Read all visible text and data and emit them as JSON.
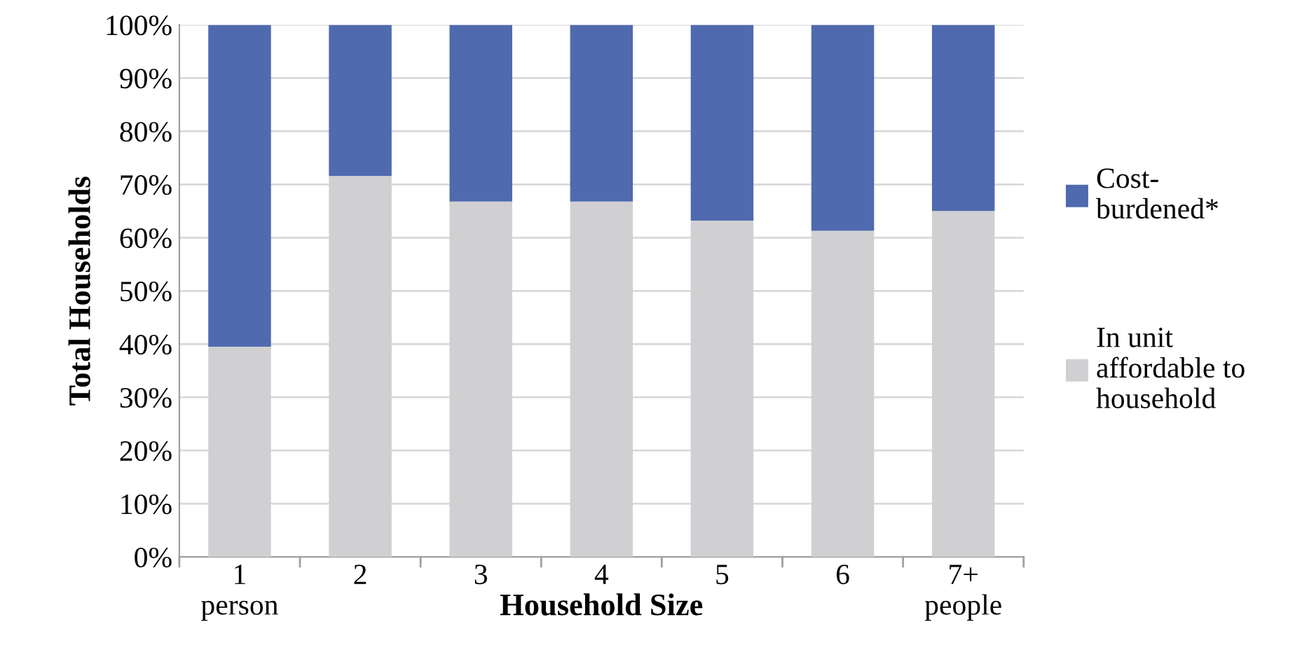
{
  "chart_data": {
    "type": "bar",
    "stacked": true,
    "xlabel": "Household Size",
    "ylabel": "Total Households",
    "categories": [
      "1\nperson",
      "2",
      "3",
      "4",
      "5",
      "6",
      "7+\npeople"
    ],
    "series": [
      {
        "name": "In unit\naffordable to\nhousehold",
        "color": "#d0d0d2",
        "values": [
          39.5,
          71.6,
          66.8,
          66.8,
          63.2,
          61.3,
          65.0
        ]
      },
      {
        "name": "Cost-\nburdened*",
        "color": "#506aaf",
        "values": [
          60.5,
          28.4,
          33.2,
          33.2,
          36.8,
          38.7,
          35.0
        ]
      }
    ],
    "ylim": [
      0,
      100
    ],
    "yticks": [
      {
        "value": 0,
        "label": "0%"
      },
      {
        "value": 10,
        "label": "10%"
      },
      {
        "value": 20,
        "label": "20%"
      },
      {
        "value": 30,
        "label": "30%"
      },
      {
        "value": 40,
        "label": "40%"
      },
      {
        "value": 50,
        "label": "50%"
      },
      {
        "value": 60,
        "label": "60%"
      },
      {
        "value": 70,
        "label": "70%"
      },
      {
        "value": 80,
        "label": "80%"
      },
      {
        "value": 90,
        "label": "90%"
      },
      {
        "value": 100,
        "label": "100%"
      }
    ],
    "grid": "y",
    "legend": "right"
  }
}
